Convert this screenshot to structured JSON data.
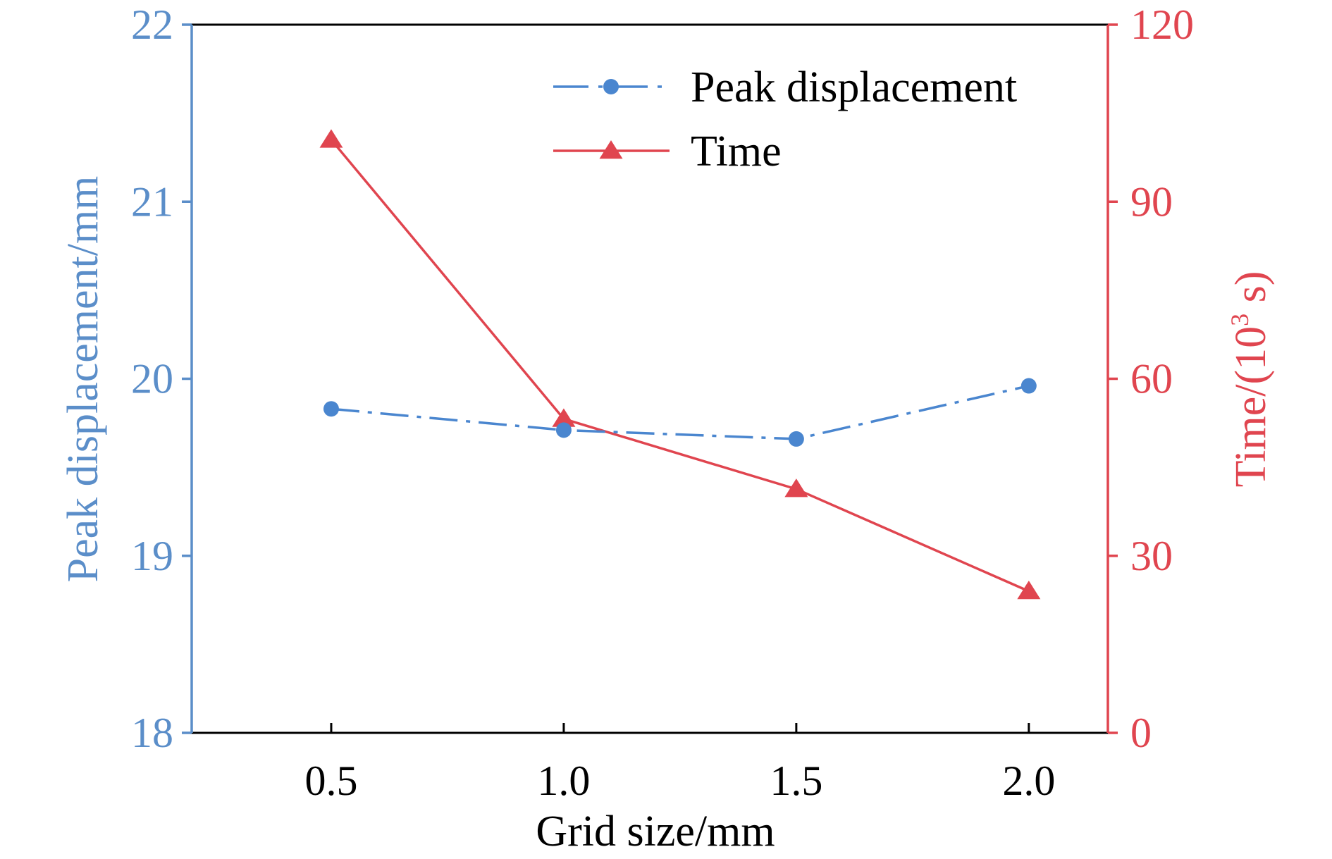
{
  "chart_data": {
    "type": "line",
    "xlabel": "Grid size/mm",
    "ylabel_left": "Peak displacement/mm",
    "ylabel_right_prefix": "Time/(10",
    "ylabel_right_sup": "3",
    "ylabel_right_suffix": " s)",
    "x": [
      0.5,
      1.0,
      1.5,
      2.0
    ],
    "x_ticks": [
      "0.5",
      "1.0",
      "1.5",
      "2.0"
    ],
    "xlim": [
      0.2,
      2.17
    ],
    "y_left_ticks": [
      "18",
      "19",
      "20",
      "21",
      "22"
    ],
    "ylim_left": [
      18,
      22
    ],
    "y_right_ticks": [
      "0",
      "30",
      "60",
      "90",
      "120"
    ],
    "ylim_right": [
      0,
      120
    ],
    "legend_position": "top-right",
    "colors": {
      "left_axis": "#5b8ec9",
      "right_axis": "#e0454f",
      "frame": "#000000"
    },
    "series": [
      {
        "name": "Peak displacement",
        "axis": "left",
        "values": [
          19.83,
          19.71,
          19.66,
          19.96
        ],
        "color": "#4a86cf",
        "marker": "circle",
        "line_style": "dash-dot"
      },
      {
        "name": "Time",
        "axis": "right",
        "values": [
          100.5,
          53.2,
          41.3,
          24.0
        ],
        "color": "#e0454f",
        "marker": "triangle",
        "line_style": "solid"
      }
    ]
  }
}
